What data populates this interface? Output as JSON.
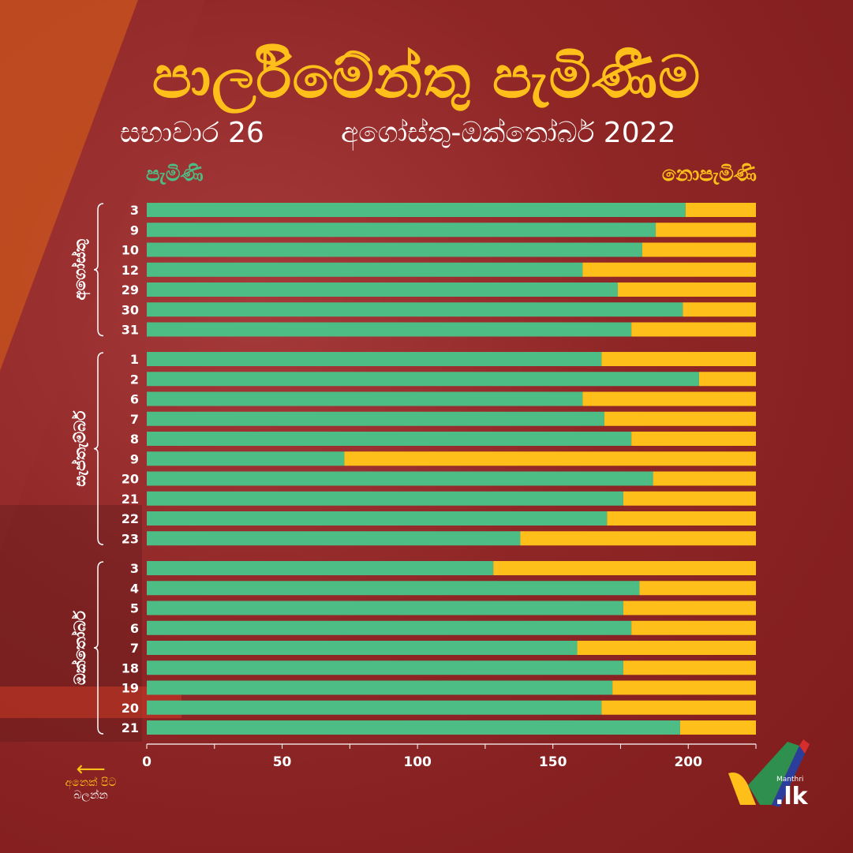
{
  "header": {
    "title": "පාර්ලිමේන්තු පැමිණීම",
    "subtitle_left": "සභාවාර 26",
    "subtitle_right": "අගෝස්තු-ඔක්තෝබර් 2022"
  },
  "legend": {
    "present": "පැමිණි",
    "absent": "නොපැමිණි"
  },
  "colors": {
    "present": "#4dbd85",
    "absent": "#ffbf1a",
    "axis": "#ffffff"
  },
  "chart_data": {
    "type": "bar",
    "orientation": "horizontal",
    "stacked": true,
    "total": 225,
    "xlim": [
      0,
      225
    ],
    "x_ticks": [
      0,
      50,
      100,
      150,
      200
    ],
    "groups": [
      {
        "label": "අගෝස්තු",
        "days": [
          "3",
          "9",
          "10",
          "12",
          "29",
          "30",
          "31"
        ],
        "present": [
          199,
          188,
          183,
          161,
          174,
          198,
          179
        ]
      },
      {
        "label": "සැප්තැම්බර්",
        "days": [
          "1",
          "2",
          "6",
          "7",
          "8",
          "9",
          "20",
          "21",
          "22",
          "23"
        ],
        "present": [
          168,
          204,
          161,
          169,
          179,
          73,
          187,
          176,
          170,
          138
        ]
      },
      {
        "label": "ඔක්තෝබර්",
        "days": [
          "3",
          "4",
          "5",
          "6",
          "7",
          "18",
          "19",
          "20",
          "21"
        ],
        "present": [
          128,
          182,
          176,
          179,
          159,
          176,
          172,
          168,
          197
        ]
      }
    ]
  },
  "footer": {
    "back_line1": "අනෙක් පිට",
    "back_line2": "බලන්න",
    "logo_small": "Manthri",
    "logo_text": ".lk",
    "back_arrow": "⟵"
  }
}
